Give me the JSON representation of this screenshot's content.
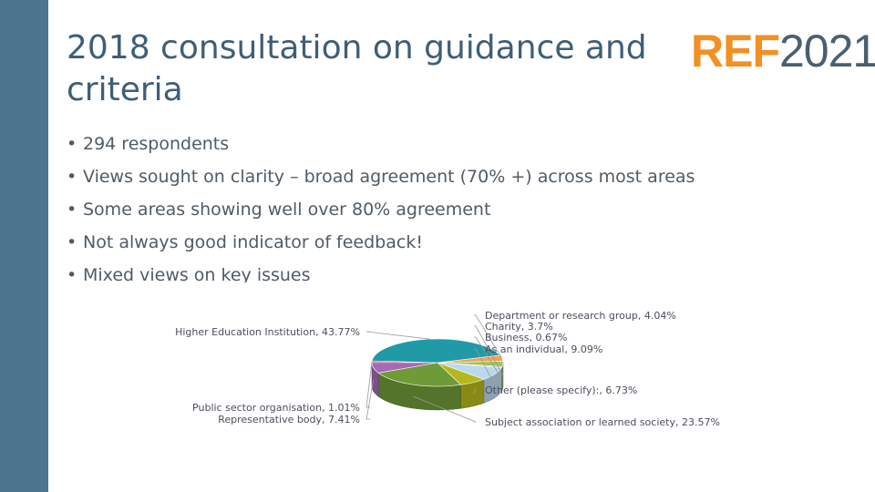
{
  "slide": {
    "title": "2018 consultation on guidance and criteria",
    "logo_main": "REF",
    "logo_year": "2021",
    "bullets": [
      "294 respondents",
      "Views sought on clarity – broad agreement (70% +) across most areas",
      "Some areas showing well over 80% agreement",
      "Not always good indicator of feedback!",
      "Mixed views on key issues"
    ]
  },
  "colors": {
    "left_bar": "#4e7590",
    "title": "#3f5e77",
    "logo_ref": "#f29023",
    "logo_year": "#4a5f70"
  },
  "chart_data": {
    "type": "pie",
    "style": "3d",
    "slices": [
      {
        "label": "Department or research group",
        "value": 4.04,
        "display": "Department or research group, 4.04%",
        "color": "#f4a05a"
      },
      {
        "label": "Charity",
        "value": 3.7,
        "display": "Charity, 3.7%",
        "color": "#a3c455"
      },
      {
        "label": "Business",
        "value": 0.67,
        "display": "Business, 0.67%",
        "color": "#4f9fd0"
      },
      {
        "label": "As an individual",
        "value": 9.09,
        "display": "As an individual, 9.09%",
        "color": "#bcd8ec"
      },
      {
        "label": "Other (please specify):",
        "value": 6.73,
        "display": "Other (please specify):, 6.73%",
        "color": "#b5b81c"
      },
      {
        "label": "Subject association or learned society",
        "value": 23.57,
        "display": "Subject association or learned society, 23.57%",
        "color": "#6f9a38"
      },
      {
        "label": "Representative body",
        "value": 7.41,
        "display": "Representative body, 7.41%",
        "color": "#a569b7"
      },
      {
        "label": "Public sector organisation",
        "value": 1.01,
        "display": "Public sector organisation, 1.01%",
        "color": "#c94a55"
      },
      {
        "label": "Higher Education Institution",
        "value": 43.77,
        "display": "Higher Education Institution, 43.77%",
        "color": "#1f9aa6"
      }
    ]
  }
}
